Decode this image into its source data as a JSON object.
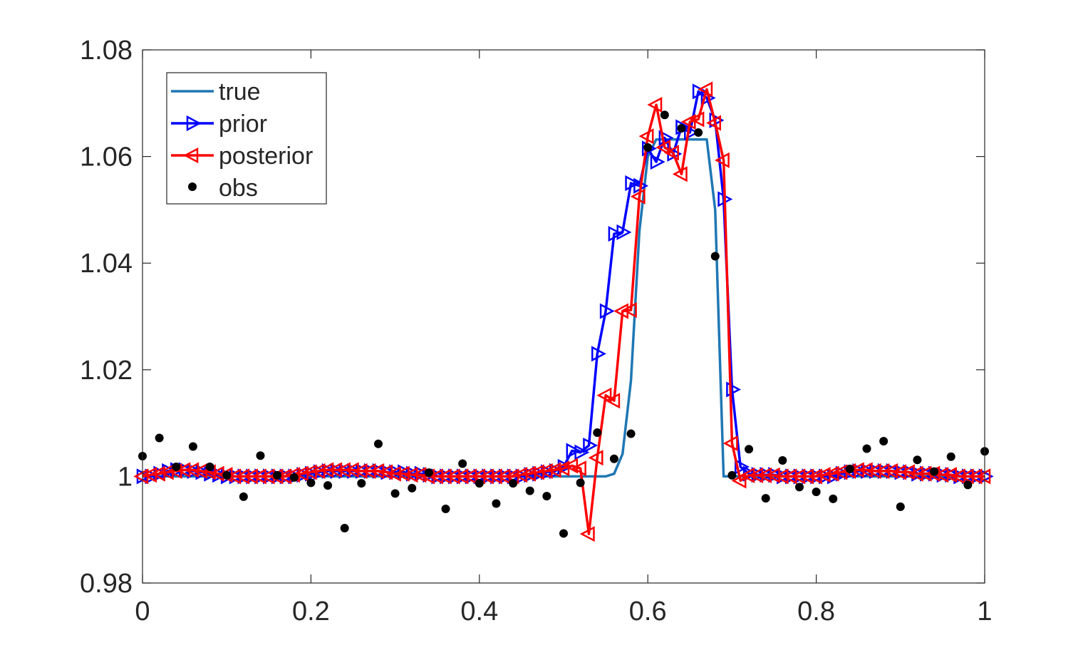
{
  "chart_data": {
    "type": "line",
    "title": "",
    "xlabel": "",
    "ylabel": "",
    "xlim": [
      0,
      1
    ],
    "ylim": [
      0.98,
      1.08
    ],
    "x_ticks": [
      0,
      0.2,
      0.4,
      0.6,
      0.8,
      1
    ],
    "x_tick_labels": [
      "0",
      "0.2",
      "0.4",
      "0.6",
      "0.8",
      "1"
    ],
    "y_ticks": [
      0.98,
      1.0,
      1.02,
      1.04,
      1.06,
      1.08
    ],
    "y_tick_labels": [
      "0.98",
      "1",
      "1.02",
      "1.04",
      "1.06",
      "1.08"
    ],
    "grid": false,
    "legend_position": "top-left",
    "series": [
      {
        "name": "true",
        "kind": "line",
        "color": "#1f77b4",
        "x": [
          0,
          0.55,
          0.56,
          0.57,
          0.58,
          0.59,
          0.6,
          0.61,
          0.62,
          0.63,
          0.64,
          0.65,
          0.66,
          0.67,
          0.68,
          0.69,
          1
        ],
        "y": [
          1.0,
          1.0,
          1.0005,
          1.0042,
          1.018,
          1.046,
          1.06,
          1.0632,
          1.0632,
          1.0632,
          1.0632,
          1.0632,
          1.0632,
          1.0632,
          1.05,
          1.0,
          1.0
        ]
      },
      {
        "name": "prior",
        "kind": "line-marker",
        "marker": "triangle-right",
        "color": "#0000ff",
        "x": [
          0,
          0.01,
          0.02,
          0.03,
          0.04,
          0.05,
          0.06,
          0.07,
          0.08,
          0.09,
          0.1,
          0.11,
          0.12,
          0.13,
          0.14,
          0.15,
          0.16,
          0.17,
          0.18,
          0.19,
          0.2,
          0.21,
          0.22,
          0.23,
          0.24,
          0.25,
          0.26,
          0.27,
          0.28,
          0.29,
          0.3,
          0.31,
          0.32,
          0.33,
          0.34,
          0.35,
          0.36,
          0.37,
          0.38,
          0.39,
          0.4,
          0.41,
          0.42,
          0.43,
          0.44,
          0.45,
          0.46,
          0.47,
          0.48,
          0.49,
          0.5,
          0.51,
          0.52,
          0.53,
          0.54,
          0.55,
          0.56,
          0.57,
          0.58,
          0.59,
          0.6,
          0.61,
          0.62,
          0.63,
          0.64,
          0.65,
          0.66,
          0.67,
          0.68,
          0.69,
          0.7,
          0.71,
          0.72,
          0.73,
          0.74,
          0.75,
          0.76,
          0.77,
          0.78,
          0.79,
          0.8,
          0.81,
          0.82,
          0.83,
          0.84,
          0.85,
          0.86,
          0.87,
          0.88,
          0.89,
          0.9,
          0.91,
          0.92,
          0.93,
          0.94,
          0.95,
          0.96,
          0.97,
          0.98,
          0.99,
          1.0
        ],
        "y": [
          1.0,
          1.0,
          1.0005,
          1.001,
          1.0012,
          1.0012,
          1.001,
          1.0008,
          1.0005,
          1.0003,
          1.0,
          1.0,
          1.0,
          1.0,
          1.0,
          1.0,
          1.0,
          1.0,
          1.0,
          1.0003,
          1.0005,
          1.0008,
          1.001,
          1.001,
          1.001,
          1.001,
          1.001,
          1.001,
          1.001,
          1.0008,
          1.0008,
          1.0008,
          1.0005,
          1.0005,
          1.0003,
          1.0,
          1.0,
          1.0,
          1.0,
          1.0,
          1.0,
          1.0,
          1.0,
          1.0,
          1.0,
          1.0,
          1.0003,
          1.0005,
          1.0008,
          1.001,
          1.0018,
          1.0048,
          1.0045,
          1.0058,
          1.023,
          1.031,
          1.0455,
          1.0458,
          1.055,
          1.0545,
          1.0615,
          1.059,
          1.0635,
          1.0605,
          1.0655,
          1.0645,
          1.0722,
          1.071,
          1.0668,
          1.052,
          1.0163,
          1.0018,
          1.0005,
          1.0003,
          1.0003,
          1.0003,
          1.0,
          1.0,
          1.0,
          1.0,
          1.0,
          1.0,
          1.0,
          1.0005,
          1.0008,
          1.001,
          1.001,
          1.001,
          1.001,
          1.001,
          1.0008,
          1.0008,
          1.0005,
          1.0005,
          1.0005,
          1.0003,
          1.0003,
          1.0,
          1.0,
          1.0,
          1.0
        ]
      },
      {
        "name": "posterior",
        "kind": "line-marker",
        "marker": "triangle-left",
        "color": "#ff0000",
        "x": [
          0,
          0.01,
          0.02,
          0.03,
          0.04,
          0.05,
          0.06,
          0.07,
          0.08,
          0.09,
          0.1,
          0.11,
          0.12,
          0.13,
          0.14,
          0.15,
          0.16,
          0.17,
          0.18,
          0.19,
          0.2,
          0.21,
          0.22,
          0.23,
          0.24,
          0.25,
          0.26,
          0.27,
          0.28,
          0.29,
          0.3,
          0.31,
          0.32,
          0.33,
          0.34,
          0.35,
          0.36,
          0.37,
          0.38,
          0.39,
          0.4,
          0.41,
          0.42,
          0.43,
          0.44,
          0.45,
          0.46,
          0.47,
          0.48,
          0.49,
          0.5,
          0.51,
          0.52,
          0.53,
          0.54,
          0.55,
          0.56,
          0.57,
          0.58,
          0.59,
          0.6,
          0.61,
          0.62,
          0.63,
          0.64,
          0.65,
          0.66,
          0.67,
          0.68,
          0.69,
          0.7,
          0.71,
          0.72,
          0.73,
          0.74,
          0.75,
          0.76,
          0.77,
          0.78,
          0.79,
          0.8,
          0.81,
          0.82,
          0.83,
          0.84,
          0.85,
          0.86,
          0.87,
          0.88,
          0.89,
          0.9,
          0.91,
          0.92,
          0.93,
          0.94,
          0.95,
          0.96,
          0.97,
          0.98,
          0.99,
          1.0
        ],
        "y": [
          1.0,
          1.0003,
          1.0005,
          1.0008,
          1.001,
          1.0012,
          1.0012,
          1.001,
          1.0008,
          1.0005,
          1.0003,
          1.0,
          1.0,
          1.0,
          1.0,
          1.0,
          1.0,
          1.0,
          1.0003,
          1.0005,
          1.0008,
          1.001,
          1.0012,
          1.0012,
          1.0012,
          1.0012,
          1.001,
          1.001,
          1.001,
          1.0008,
          1.0005,
          1.0005,
          1.0003,
          1.0003,
          1.0,
          1.0,
          1.0,
          1.0,
          1.0,
          1.0,
          1.0,
          1.0,
          1.0,
          1.0,
          1.0,
          1.0003,
          1.0005,
          1.0008,
          1.001,
          1.0012,
          1.0015,
          1.002,
          1.0015,
          0.9892,
          1.0035,
          1.0152,
          1.0142,
          1.031,
          1.0312,
          1.0525,
          1.0638,
          1.0697,
          1.0617,
          1.0607,
          1.0567,
          1.0665,
          1.067,
          1.0726,
          1.0663,
          1.0593,
          1.0062,
          0.9992,
          1.0002,
          1.0002,
          1.0002,
          1.0002,
          1.0,
          1.0,
          1.0,
          1.0,
          1.0,
          1.0003,
          1.0005,
          1.0008,
          1.001,
          1.0012,
          1.0012,
          1.001,
          1.001,
          1.001,
          1.0008,
          1.0008,
          1.0005,
          1.0005,
          1.0005,
          1.0003,
          1.0003,
          1.0,
          1.0,
          1.0,
          1.0
        ]
      },
      {
        "name": "obs",
        "kind": "scatter",
        "marker": "dot",
        "color": "#000000",
        "x": [
          0,
          0.02,
          0.04,
          0.06,
          0.08,
          0.1,
          0.12,
          0.14,
          0.16,
          0.18,
          0.2,
          0.22,
          0.24,
          0.26,
          0.28,
          0.3,
          0.32,
          0.34,
          0.36,
          0.38,
          0.4,
          0.42,
          0.44,
          0.46,
          0.48,
          0.5,
          0.52,
          0.54,
          0.56,
          0.58,
          0.6,
          0.62,
          0.64,
          0.66,
          0.68,
          0.7,
          0.72,
          0.74,
          0.76,
          0.78,
          0.8,
          0.82,
          0.84,
          0.86,
          0.88,
          0.9,
          0.92,
          0.94,
          0.96,
          0.98,
          1.0
        ],
        "y": [
          1.0038,
          1.0072,
          1.0018,
          1.0056,
          1.0018,
          1.0002,
          0.9962,
          1.0039,
          1.0002,
          0.9998,
          0.9988,
          0.9983,
          0.9903,
          0.9987,
          1.0061,
          0.9968,
          0.9978,
          1.0007,
          0.9939,
          1.0024,
          0.9987,
          0.9949,
          0.9987,
          0.9973,
          0.9963,
          0.9893,
          0.9988,
          1.0082,
          1.0033,
          1.008,
          1.0617,
          1.0678,
          1.0653,
          1.0645,
          1.0413,
          1.0002,
          1.0051,
          0.9959,
          1.003,
          0.998,
          0.9971,
          0.9958,
          1.0014,
          1.0052,
          1.0066,
          0.9943,
          1.0031,
          1.0009,
          1.0037,
          0.9984,
          1.0047
        ]
      }
    ]
  }
}
